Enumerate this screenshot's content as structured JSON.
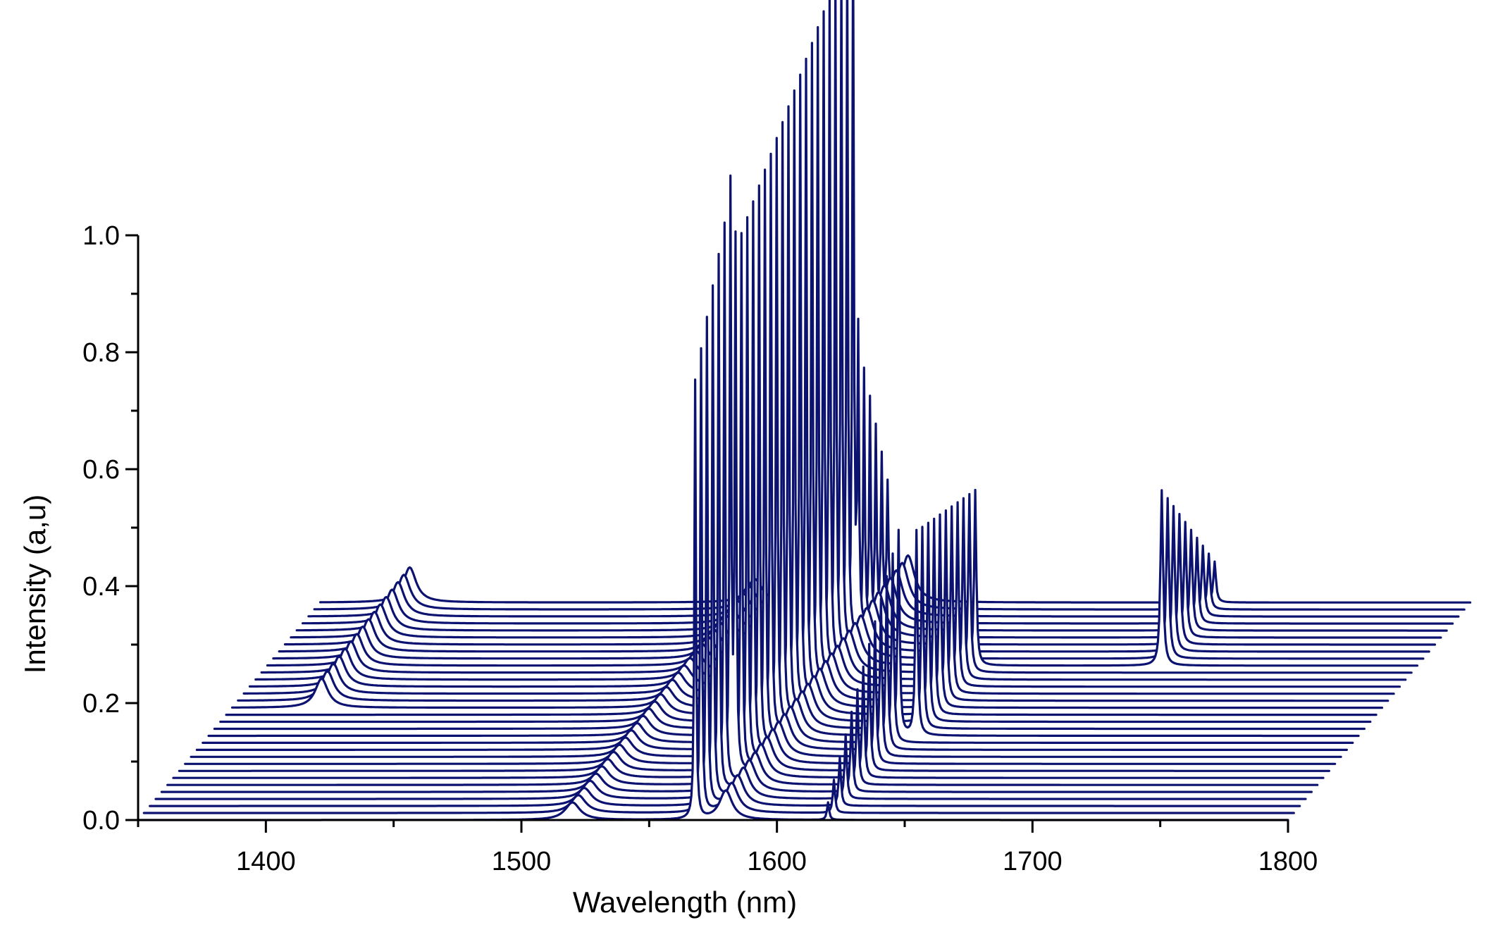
{
  "chart_data": {
    "type": "line",
    "subtype": "waterfall",
    "title": "",
    "xlabel": "Wavelength (nm)",
    "ylabel": "Intensity (a,u)",
    "xlim": [
      1350,
      1800
    ],
    "ylim": [
      0.0,
      1.0
    ],
    "x_ticks": [
      "1400",
      "1500",
      "1600",
      "1700",
      "1800"
    ],
    "y_ticks": [
      "0.0",
      "0.2",
      "0.4",
      "0.6",
      "0.8",
      "1.0"
    ],
    "trace_count": 32,
    "trace_x_range": [
      1350,
      1800
    ],
    "offset_per_trace": {
      "wavelength_nm": 2.3,
      "intensity": 0.012
    },
    "grid": false,
    "legend": "none",
    "line_color": "#0c1270",
    "peaks": [
      {
        "trace_from": 0,
        "trace_to": 6,
        "center_nm": 1568,
        "amp_from": 0.75,
        "amp_to": 1.0,
        "width_nm": 0.35
      },
      {
        "trace_from": 6,
        "trace_to": 26,
        "center_nm": 1570,
        "amp_from": 0.9,
        "amp_to": 1.2,
        "width_nm": 0.35
      },
      {
        "trace_from": 26,
        "trace_to": 31,
        "center_nm": 1572,
        "amp_from": 0.5,
        "amp_to": 0.2,
        "width_nm": 0.35
      },
      {
        "trace_from": 0,
        "trace_to": 31,
        "center_nm": 1580,
        "amp_from": 0.05,
        "amp_to": 0.08,
        "width_nm": 3.0
      },
      {
        "trace_from": 0,
        "trace_to": 31,
        "center_nm": 1520,
        "amp_from": 0.03,
        "amp_to": 0.04,
        "width_nm": 3.5
      },
      {
        "trace_from": 0,
        "trace_to": 12,
        "center_nm": 1620,
        "amp_from": 0.03,
        "amp_to": 0.35,
        "width_nm": 0.5
      },
      {
        "trace_from": 12,
        "trace_to": 22,
        "center_nm": 1627,
        "amp_from": 0.35,
        "amp_to": 0.3,
        "width_nm": 0.5
      },
      {
        "trace_from": 22,
        "trace_to": 31,
        "center_nm": 1700,
        "amp_from": 0.3,
        "amp_to": 0.07,
        "width_nm": 0.6
      },
      {
        "trace_from": 16,
        "trace_to": 31,
        "center_nm": 1385,
        "amp_from": 0.05,
        "amp_to": 0.06,
        "width_nm": 3.0
      }
    ]
  }
}
